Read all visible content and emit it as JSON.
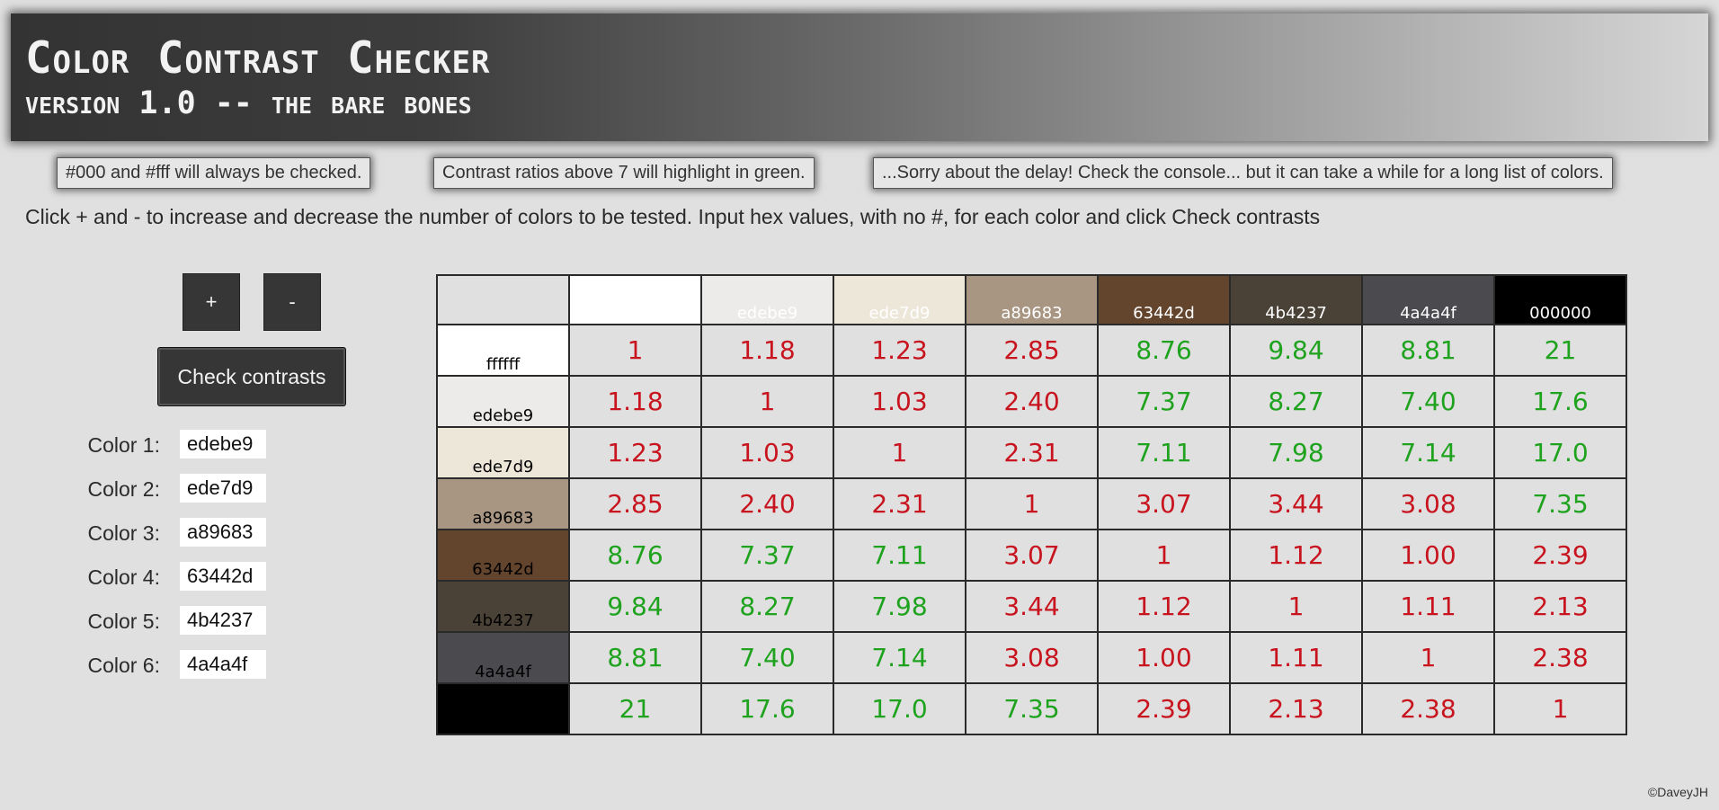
{
  "header": {
    "title": "Color Contrast Checker",
    "subtitle": "version 1.0 -- the bare bones"
  },
  "notes": [
    "#000 and #fff will always be checked.",
    "Contrast ratios above 7 will highlight in green.",
    "...Sorry about the delay! Check the console... but it can take a while for a long list of colors."
  ],
  "instructions": "Click + and - to increase and decrease the number of colors to be tested. Input hex values, with no #, for each color and click Check contrasts",
  "controls": {
    "add_label": "+",
    "remove_label": "-",
    "check_label": "Check contrasts"
  },
  "colors": [
    {
      "label": "Color 1:",
      "value": "edebe9"
    },
    {
      "label": "Color 2:",
      "value": "ede7d9"
    },
    {
      "label": "Color 3:",
      "value": "a89683"
    },
    {
      "label": "Color 4:",
      "value": "63442d"
    },
    {
      "label": "Color 5:",
      "value": "4b4237"
    },
    {
      "label": "Color 6:",
      "value": "4a4a4f"
    }
  ],
  "grid": {
    "threshold": 7,
    "good_color": "#1fa31f",
    "bad_color": "#c8141e",
    "columns": [
      {
        "hex": "ffffff",
        "label": "",
        "bg": "#ffffff",
        "fg": "#ffffff"
      },
      {
        "hex": "edebe9",
        "label": "edebe9",
        "bg": "#edebe9",
        "fg": "#ffffff"
      },
      {
        "hex": "ede7d9",
        "label": "ede7d9",
        "bg": "#ede7d9",
        "fg": "#ffffff"
      },
      {
        "hex": "a89683",
        "label": "a89683",
        "bg": "#a89683",
        "fg": "#ffffff"
      },
      {
        "hex": "63442d",
        "label": "63442d",
        "bg": "#63442d",
        "fg": "#ffffff"
      },
      {
        "hex": "4b4237",
        "label": "4b4237",
        "bg": "#4b4237",
        "fg": "#ffffff"
      },
      {
        "hex": "4a4a4f",
        "label": "4a4a4f",
        "bg": "#4a4a4f",
        "fg": "#ffffff"
      },
      {
        "hex": "000000",
        "label": "000000",
        "bg": "#000000",
        "fg": "#ffffff"
      }
    ],
    "rows": [
      {
        "label": "ffffff",
        "bg": "#ffffff",
        "fg": "#000000",
        "values": [
          "1",
          "1.18",
          "1.23",
          "2.85",
          "8.76",
          "9.84",
          "8.81",
          "21"
        ]
      },
      {
        "label": "edebe9",
        "bg": "#edebe9",
        "fg": "#000000",
        "values": [
          "1.18",
          "1",
          "1.03",
          "2.40",
          "7.37",
          "8.27",
          "7.40",
          "17.6"
        ]
      },
      {
        "label": "ede7d9",
        "bg": "#ede7d9",
        "fg": "#000000",
        "values": [
          "1.23",
          "1.03",
          "1",
          "2.31",
          "7.11",
          "7.98",
          "7.14",
          "17.0"
        ]
      },
      {
        "label": "a89683",
        "bg": "#a89683",
        "fg": "#000000",
        "values": [
          "2.85",
          "2.40",
          "2.31",
          "1",
          "3.07",
          "3.44",
          "3.08",
          "7.35"
        ]
      },
      {
        "label": "63442d",
        "bg": "#63442d",
        "fg": "#000000",
        "values": [
          "8.76",
          "7.37",
          "7.11",
          "3.07",
          "1",
          "1.12",
          "1.00",
          "2.39"
        ]
      },
      {
        "label": "4b4237",
        "bg": "#4b4237",
        "fg": "#000000",
        "values": [
          "9.84",
          "8.27",
          "7.98",
          "3.44",
          "1.12",
          "1",
          "1.11",
          "2.13"
        ]
      },
      {
        "label": "4a4a4f",
        "bg": "#4a4a4f",
        "fg": "#000000",
        "values": [
          "8.81",
          "7.40",
          "7.14",
          "3.08",
          "1.00",
          "1.11",
          "1",
          "2.38"
        ]
      },
      {
        "label": "",
        "bg": "#000000",
        "fg": "#000000",
        "values": [
          "21",
          "17.6",
          "17.0",
          "7.35",
          "2.39",
          "2.13",
          "2.38",
          "1"
        ]
      }
    ]
  },
  "footer": "©DaveyJH"
}
